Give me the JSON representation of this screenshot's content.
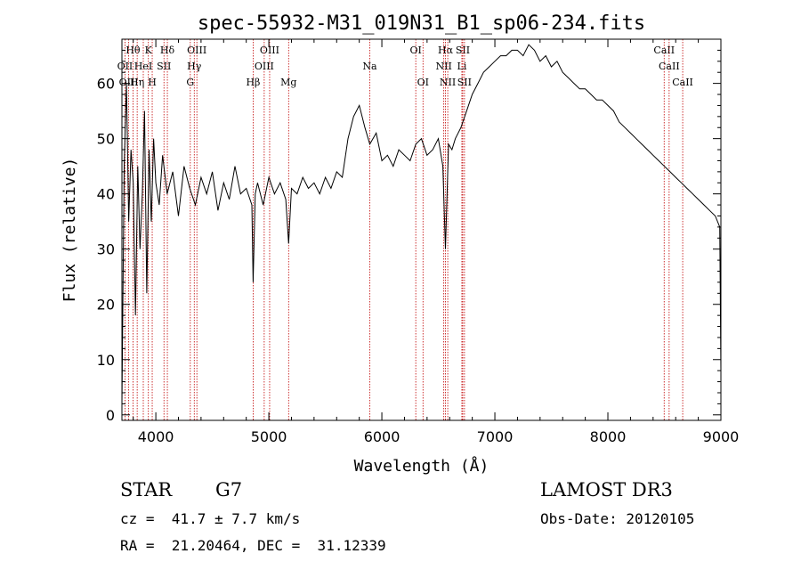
{
  "chart_data": {
    "type": "line",
    "title": "spec-55932-M31_019N31_B1_sp06-234.fits",
    "xlabel": "Wavelength (Å)",
    "ylabel": "Flux (relative)",
    "xlim": [
      3700,
      9000
    ],
    "ylim": [
      -1,
      68
    ],
    "xticks": [
      4000,
      5000,
      6000,
      7000,
      8000,
      9000
    ],
    "yticks": [
      0,
      10,
      20,
      30,
      40,
      50,
      60
    ],
    "series": [
      {
        "name": "flux",
        "x": [
          3700,
          3720,
          3740,
          3760,
          3780,
          3800,
          3820,
          3840,
          3860,
          3880,
          3900,
          3920,
          3940,
          3960,
          3980,
          4000,
          4030,
          4060,
          4100,
          4150,
          4200,
          4250,
          4300,
          4350,
          4400,
          4450,
          4500,
          4550,
          4600,
          4650,
          4700,
          4750,
          4800,
          4850,
          4861,
          4880,
          4900,
          4950,
          5000,
          5050,
          5100,
          5150,
          5175,
          5200,
          5250,
          5300,
          5350,
          5400,
          5450,
          5500,
          5550,
          5600,
          5650,
          5700,
          5750,
          5800,
          5850,
          5893,
          5950,
          6000,
          6050,
          6100,
          6150,
          6200,
          6250,
          6300,
          6350,
          6400,
          6450,
          6500,
          6540,
          6563,
          6590,
          6620,
          6650,
          6700,
          6750,
          6800,
          6850,
          6900,
          6950,
          7000,
          7050,
          7100,
          7150,
          7200,
          7250,
          7300,
          7350,
          7400,
          7450,
          7500,
          7550,
          7600,
          7650,
          7700,
          7750,
          7800,
          7850,
          7900,
          7950,
          8000,
          8050,
          8100,
          8150,
          8200,
          8250,
          8300,
          8350,
          8400,
          8450,
          8500,
          8550,
          8600,
          8650,
          8700,
          8750,
          8800,
          8850,
          8900,
          8950,
          8990,
          9000
        ],
        "y": [
          2,
          45,
          60,
          35,
          48,
          42,
          18,
          45,
          30,
          40,
          55,
          22,
          48,
          35,
          50,
          42,
          38,
          47,
          40,
          44,
          36,
          45,
          41,
          38,
          43,
          40,
          44,
          37,
          42,
          39,
          45,
          40,
          41,
          38,
          24,
          40,
          42,
          38,
          43,
          40,
          42,
          39,
          31,
          41,
          40,
          43,
          41,
          42,
          40,
          43,
          41,
          44,
          43,
          50,
          54,
          56,
          52,
          49,
          51,
          46,
          47,
          45,
          48,
          47,
          46,
          49,
          50,
          47,
          48,
          50,
          45,
          30,
          49,
          48,
          50,
          52,
          55,
          58,
          60,
          62,
          63,
          64,
          65,
          65,
          66,
          66,
          65,
          67,
          66,
          64,
          65,
          63,
          64,
          62,
          61,
          60,
          59,
          59,
          58,
          57,
          57,
          56,
          55,
          53,
          52,
          51,
          50,
          49,
          48,
          47,
          46,
          45,
          44,
          43,
          42,
          41,
          40,
          39,
          38,
          37,
          36,
          34,
          8
        ]
      }
    ],
    "lines": [
      {
        "name": "Hθ",
        "x": 3798,
        "row": 0
      },
      {
        "name": "K",
        "x": 3934,
        "row": 0
      },
      {
        "name": "Hδ",
        "x": 4102,
        "row": 0
      },
      {
        "name": "OIII",
        "x": 4363,
        "row": 0
      },
      {
        "name": "OIII",
        "x": 5007,
        "row": 0
      },
      {
        "name": "OI",
        "x": 6300,
        "row": 0
      },
      {
        "name": "Hα",
        "x": 6563,
        "row": 0
      },
      {
        "name": "SII",
        "x": 6716,
        "row": 0
      },
      {
        "name": "CaII",
        "x": 8498,
        "row": 0
      },
      {
        "name": "OII",
        "x": 3727,
        "row": 1
      },
      {
        "name": "HeI",
        "x": 3889,
        "row": 1
      },
      {
        "name": "SII",
        "x": 4072,
        "row": 1
      },
      {
        "name": "Hγ",
        "x": 4340,
        "row": 1
      },
      {
        "name": "OIII",
        "x": 4959,
        "row": 1
      },
      {
        "name": "Na",
        "x": 5893,
        "row": 1
      },
      {
        "name": "NII",
        "x": 6548,
        "row": 1
      },
      {
        "name": "Li",
        "x": 6708,
        "row": 1
      },
      {
        "name": "CaII",
        "x": 8542,
        "row": 1
      },
      {
        "name": "OIII",
        "x": 3760,
        "row": 2
      },
      {
        "name": "Hη",
        "x": 3835,
        "row": 2
      },
      {
        "name": "H",
        "x": 3968,
        "row": 2
      },
      {
        "name": "G",
        "x": 4305,
        "row": 2
      },
      {
        "name": "Hβ",
        "x": 4861,
        "row": 2
      },
      {
        "name": "Mg",
        "x": 5175,
        "row": 2
      },
      {
        "name": "OI",
        "x": 6364,
        "row": 2
      },
      {
        "name": "NII",
        "x": 6583,
        "row": 2
      },
      {
        "name": "SII",
        "x": 6731,
        "row": 2
      },
      {
        "name": "CaII",
        "x": 8662,
        "row": 2
      }
    ],
    "line_color": "#c00000"
  },
  "info": {
    "class": "STAR",
    "subclass": "G7",
    "survey": "LAMOST DR3",
    "redshift": "cz =  41.7 ± 7.7 km/s",
    "obs_date": "Obs-Date: 20120105",
    "coords": "RA =  21.20464, DEC =  31.12339"
  }
}
